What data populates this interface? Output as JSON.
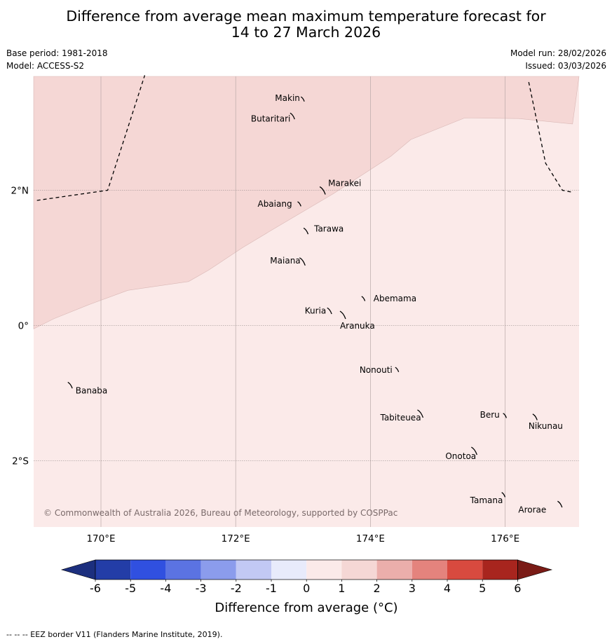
{
  "title": {
    "line1": "Difference from average mean maximum temperature forecast for",
    "line2": "14 to 27 March 2026"
  },
  "meta": {
    "base_period": "Base period: 1981-2018",
    "model": "Model: ACCESS-S2",
    "model_run": "Model run: 28/02/2026",
    "issued": "Issued: 03/03/2026"
  },
  "axes": {
    "lon_ticks": [
      {
        "lon": 170,
        "label": "170°E"
      },
      {
        "lon": 172,
        "label": "172°E"
      },
      {
        "lon": 174,
        "label": "174°E"
      },
      {
        "lon": 176,
        "label": "176°E"
      }
    ],
    "lat_ticks": [
      {
        "lat": 2,
        "label": "2°N"
      },
      {
        "lat": 0,
        "label": "0°"
      },
      {
        "lat": -2,
        "label": "2°S"
      }
    ]
  },
  "places": [
    {
      "id": "makin",
      "name": "Makin",
      "lon": 173.0,
      "lat": 3.35
    },
    {
      "id": "butaritari",
      "name": "Butaritari",
      "lon": 172.85,
      "lat": 3.1
    },
    {
      "id": "marakei",
      "name": "Marakei",
      "lon": 173.3,
      "lat": 2.0
    },
    {
      "id": "abaiang",
      "name": "Abaiang",
      "lon": 172.95,
      "lat": 1.8
    },
    {
      "id": "tarawa",
      "name": "Tarawa",
      "lon": 173.05,
      "lat": 1.4
    },
    {
      "id": "maiana",
      "name": "Maiana",
      "lon": 173.0,
      "lat": 0.95
    },
    {
      "id": "abemama",
      "name": "Abemama",
      "lon": 173.9,
      "lat": 0.4
    },
    {
      "id": "kuria",
      "name": "Kuria",
      "lon": 173.4,
      "lat": 0.22
    },
    {
      "id": "aranuka",
      "name": "Aranuka",
      "lon": 173.6,
      "lat": 0.16
    },
    {
      "id": "nonouti",
      "name": "Nonouti",
      "lon": 174.4,
      "lat": -0.65
    },
    {
      "id": "banaba",
      "name": "Banaba",
      "lon": 169.55,
      "lat": -0.88
    },
    {
      "id": "tabiteuea",
      "name": "Tabiteuea",
      "lon": 174.75,
      "lat": -1.3
    },
    {
      "id": "beru",
      "name": "Beru",
      "lon": 176.0,
      "lat": -1.33
    },
    {
      "id": "nikunau",
      "name": "Nikunau",
      "lon": 176.45,
      "lat": -1.35
    },
    {
      "id": "onotoa",
      "name": "Onotoa",
      "lon": 175.55,
      "lat": -1.85
    },
    {
      "id": "tamana",
      "name": "Tamana",
      "lon": 175.98,
      "lat": -2.5
    },
    {
      "id": "arorae",
      "name": "Arorae",
      "lon": 176.82,
      "lat": -2.64
    }
  ],
  "fields": {
    "region_1_to_2_color": "#f5d7d5",
    "region_0_to_1_color": "#fbeae9",
    "boundary_1C": [
      [
        169.0,
        -0.05
      ],
      [
        169.3,
        0.1
      ],
      [
        169.8,
        0.3
      ],
      [
        170.4,
        0.52
      ],
      [
        171.3,
        0.65
      ],
      [
        171.6,
        0.82
      ],
      [
        172.1,
        1.15
      ],
      [
        172.6,
        1.45
      ],
      [
        173.45,
        1.95
      ],
      [
        174.3,
        2.5
      ],
      [
        174.6,
        2.75
      ],
      [
        175.4,
        3.07
      ],
      [
        176.2,
        3.06
      ],
      [
        177.0,
        2.98
      ]
    ]
  },
  "eez_border": {
    "west": [
      [
        169.05,
        1.85
      ],
      [
        170.1,
        2.0
      ],
      [
        170.65,
        3.7
      ]
    ],
    "east": [
      [
        176.35,
        3.6
      ],
      [
        176.6,
        2.4
      ],
      [
        176.85,
        2.0
      ],
      [
        177.0,
        1.97
      ]
    ]
  },
  "colorbar": {
    "title": "Difference from average (°C)",
    "ticks": [
      "-6",
      "-5",
      "-4",
      "-3",
      "-2",
      "-1",
      "0",
      "1",
      "2",
      "3",
      "4",
      "5",
      "6"
    ],
    "colors": [
      "#233da7",
      "#3050e0",
      "#5b73e2",
      "#8b9cec",
      "#c2c9f4",
      "#e8ebfb",
      "#fbeae9",
      "#f5d7d5",
      "#ebaeab",
      "#e4837d",
      "#d84a3f",
      "#a8251e"
    ],
    "under_color": "#1c2f7e",
    "over_color": "#7a1b16"
  },
  "copyright": "© Commonwealth of Australia 2026, Bureau of Meteorology, supported by COSPPac",
  "footnote": "-- -- -- EEZ border V11 (Flanders Marine Institute, 2019)."
}
